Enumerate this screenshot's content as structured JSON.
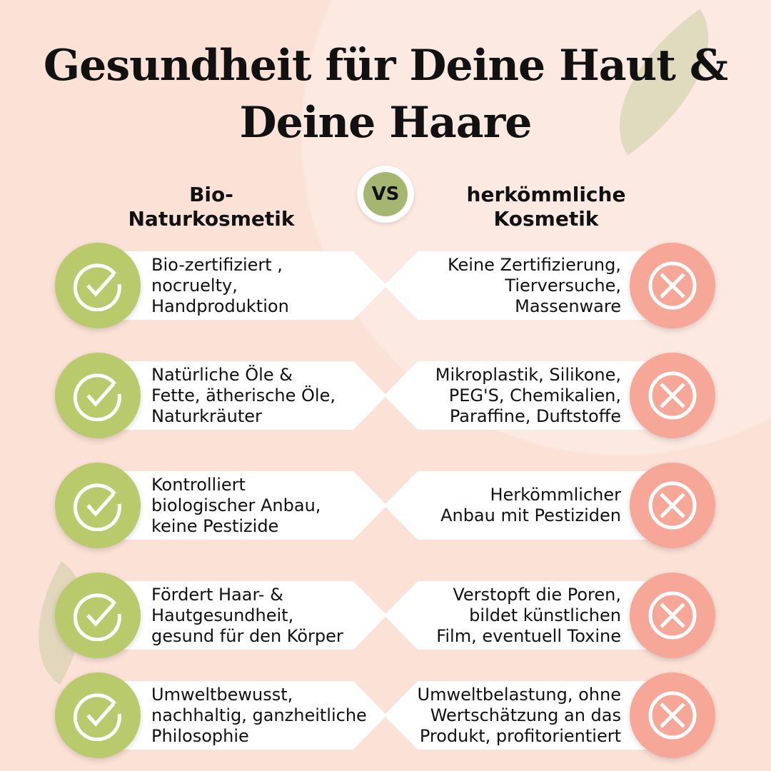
{
  "title": "Gesundheit für Deine Haut & Deine Haare",
  "title_lines": [
    "Gesundheit für Deine Haut &",
    "Deine Haare"
  ],
  "left_heading": [
    "Bio-",
    "Naturkosmetik"
  ],
  "vs_label": "VS",
  "right_heading": [
    "herkömmliche",
    "Kosmetik"
  ],
  "colors": {
    "background": "#fbe1d6",
    "check": "#b9ca6c",
    "cross": "#f6a798",
    "vs": "#a5b670"
  },
  "rows": [
    {
      "pro": [
        "Bio-zertifiziert ,",
        "nocruelty,",
        "Handproduktion"
      ],
      "con": [
        "Keine Zertifizierung,",
        "Tierversuche,",
        "Massenware"
      ]
    },
    {
      "pro": [
        "Natürliche Öle &",
        "Fette, ätherische Öle,",
        "Naturkräuter"
      ],
      "con": [
        "Mikroplastik, Silikone,",
        "PEG'S,  Chemikalien,",
        "Paraffine, Duftstoffe"
      ]
    },
    {
      "pro": [
        "Kontrolliert",
        "biologischer Anbau,",
        "keine Pestizide"
      ],
      "con": [
        "Herkömmlicher",
        "Anbau mit Pestiziden"
      ]
    },
    {
      "pro": [
        "Fördert Haar- &",
        "Hautgesundheit,",
        "gesund für den Körper"
      ],
      "con": [
        "Verstopft die Poren,",
        "bildet künstlichen",
        "Film, eventuell Toxine"
      ]
    },
    {
      "pro": [
        "Umweltbewusst,",
        "nachhaltig, ganzheitliche",
        "Philosophie"
      ],
      "con": [
        "Umweltbelastung, ohne",
        "Wertschätzung an das",
        "Produkt, profitorientiert"
      ]
    }
  ]
}
